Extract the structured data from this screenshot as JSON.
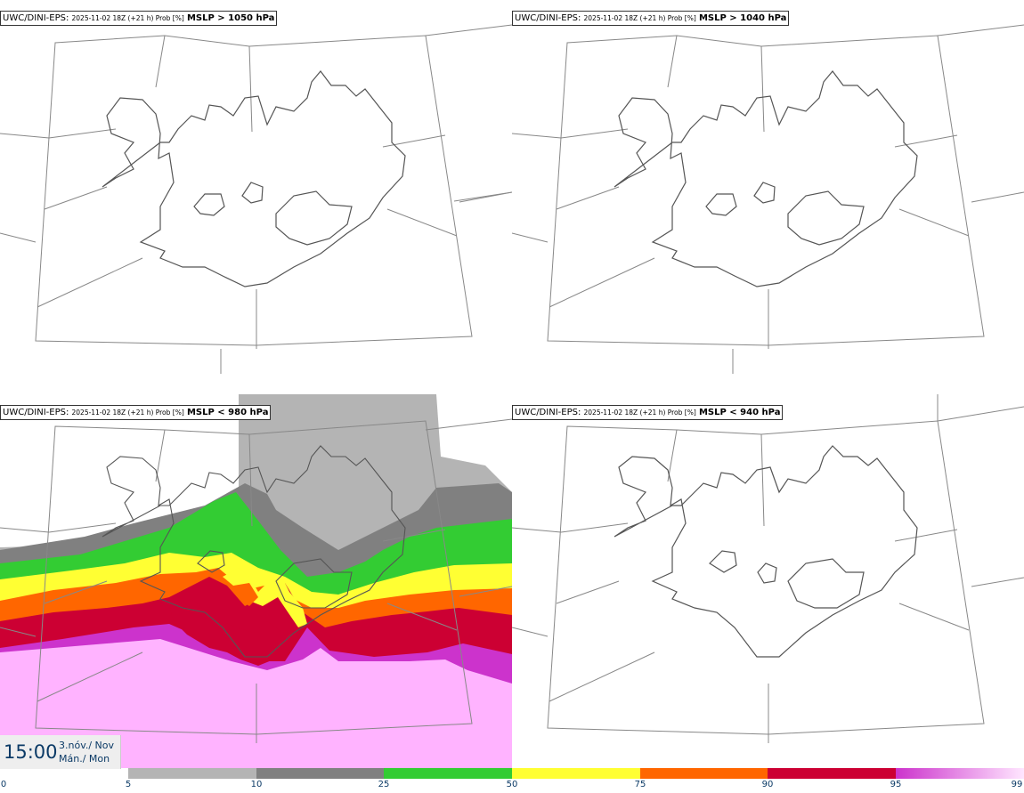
{
  "panels": [
    {
      "id": "p1",
      "model": "UWC/DINI-EPS",
      "run": "2025-11-02 18Z (+21 h) Prob [%]",
      "threshold": "MSLP > 1050 hPa"
    },
    {
      "id": "p2",
      "model": "UWC/DINI-EPS",
      "run": "2025-11-02 18Z (+21 h) Prob [%]",
      "threshold": "MSLP > 1040 hPa"
    },
    {
      "id": "p3",
      "model": "UWC/DINI-EPS",
      "run": "2025-11-02 18Z (+21 h) Prob [%]",
      "threshold": "MSLP < 980 hPa"
    },
    {
      "id": "p4",
      "model": "UWC/DINI-EPS",
      "run": "2025-11-02 18Z (+21 h) Prob [%]",
      "threshold": "MSLP < 940 hPa"
    }
  ],
  "valid_time": {
    "time": "15:00",
    "date": "3.nóv./ Nov",
    "weekday": "Mán./ Mon"
  },
  "colorbar": {
    "ticks": [
      "0",
      "5",
      "10",
      "25",
      "50",
      "75",
      "90",
      "95",
      "99"
    ],
    "colors": [
      "#ffffff",
      "#b4b4b4",
      "#808080",
      "#33cc33",
      "#ffff33",
      "#ff6600",
      "#cc0033",
      "#cc33cc",
      "#ffb3ff"
    ],
    "last_gradient": "#ffe6ff"
  },
  "map_colors": {
    "coast": "#555555",
    "grid": "#888888"
  }
}
